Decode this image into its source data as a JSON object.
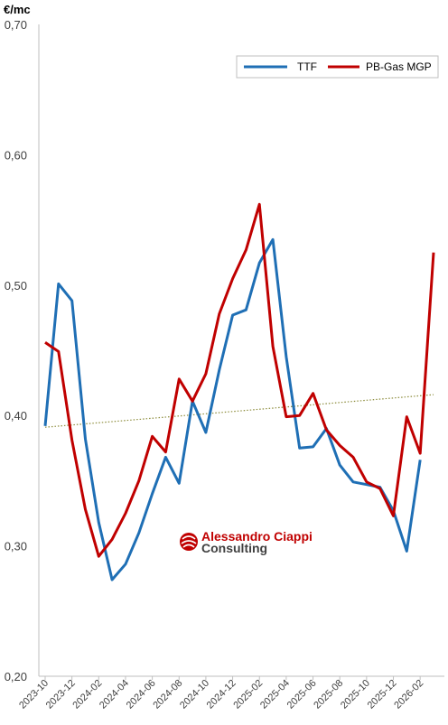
{
  "chart_data": {
    "type": "line",
    "ylabel": "€/mc",
    "ylim": [
      0.2,
      0.7
    ],
    "yticks": [
      "0,20",
      "0,30",
      "0,40",
      "0,50",
      "0,60",
      "0,70"
    ],
    "ytick_values": [
      0.2,
      0.3,
      0.4,
      0.5,
      0.6,
      0.7
    ],
    "x": [
      "2023-10",
      "2023-11",
      "2023-12",
      "2024-01",
      "2024-02",
      "2024-03",
      "2024-04",
      "2024-05",
      "2024-06",
      "2024-07",
      "2024-08",
      "2024-09",
      "2024-10",
      "2024-11",
      "2024-12",
      "2025-01",
      "2025-02",
      "2025-03",
      "2025-04",
      "2025-05",
      "2025-06",
      "2025-07",
      "2025-08",
      "2025-09",
      "2025-10",
      "2025-11",
      "2025-12",
      "2026-01",
      "2026-02",
      "2026-03"
    ],
    "x_tick_labels": [
      "2023-10",
      "2023-12",
      "2024-02",
      "2024-04",
      "2024-06",
      "2024-08",
      "2024-10",
      "2024-12",
      "2025-02",
      "2025-04",
      "2025-06",
      "2025-08",
      "2025-10",
      "2025-12",
      "2026-02"
    ],
    "series": [
      {
        "name": "TTF",
        "color": "#1f6fb5",
        "values": [
          0.392,
          0.501,
          0.488,
          0.382,
          0.318,
          0.274,
          0.286,
          0.31,
          0.34,
          0.368,
          0.348,
          0.411,
          0.387,
          0.435,
          0.477,
          0.481,
          0.517,
          0.535,
          0.445,
          0.375,
          0.376,
          0.39,
          0.362,
          0.349,
          0.347,
          0.345,
          0.327,
          0.296,
          0.366,
          null
        ]
      },
      {
        "name": "PB-Gas MGP",
        "color": "#c00000",
        "values": [
          0.456,
          0.449,
          0.381,
          0.328,
          0.292,
          0.305,
          0.325,
          0.35,
          0.384,
          0.372,
          0.428,
          0.411,
          0.432,
          0.478,
          0.505,
          0.527,
          0.562,
          0.453,
          0.399,
          0.4,
          0.417,
          0.389,
          0.377,
          0.368,
          0.349,
          0.344,
          0.323,
          0.399,
          0.371,
          0.525
        ]
      }
    ],
    "trendline": {
      "style": "dotted",
      "color": "#8c8c3c",
      "start": 0.391,
      "end": 0.416
    },
    "legend_placement": "top-right",
    "grid": false
  },
  "watermark": {
    "line1": "Alessandro Ciappi",
    "line2": "Consulting",
    "color": "#c00000"
  }
}
